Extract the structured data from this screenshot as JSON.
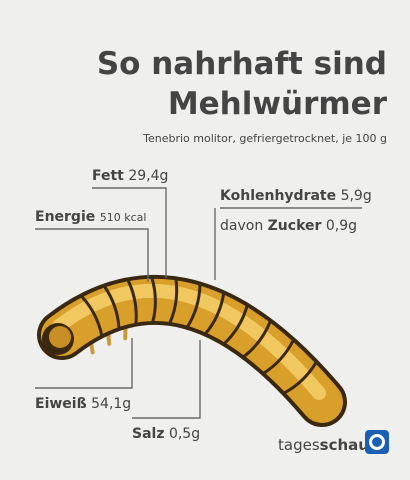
{
  "header": {
    "title_line1": "So nahrhaft sind",
    "title_line2": "Mehlwürmer",
    "subtitle": "Tenebrio molitor, gefriergetrocknet, je 100 g"
  },
  "nutrients": {
    "fett": {
      "name": "Fett",
      "value": "29,4g"
    },
    "energie": {
      "name": "Energie",
      "value": "510 kcal"
    },
    "kohlenhydrate": {
      "name": "Kohlenhydrate",
      "value": "5,9g"
    },
    "zucker": {
      "prefix": "davon",
      "name": "Zucker",
      "value": "0,9g"
    },
    "eiweiss": {
      "name": "Eiweiß",
      "value": "54,1g"
    },
    "salz": {
      "name": "Salz",
      "value": "0,5g"
    }
  },
  "logo": {
    "light": "tages",
    "bold": "schau"
  }
}
